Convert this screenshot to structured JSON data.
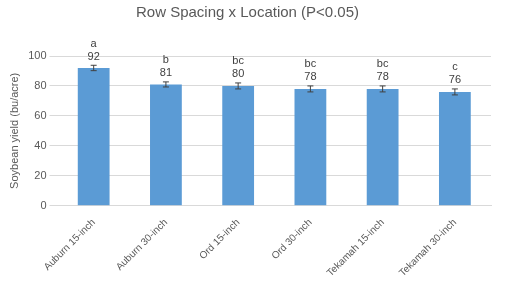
{
  "chart_data": {
    "type": "bar",
    "title": "Row Spacing x Location (P<0.05)",
    "y_label": "Soybean yield (bu/acre)",
    "categories": [
      "Auburn 15-inch",
      "Auburn 30-inch",
      "Ord 15-inch",
      "Ord 30-inch",
      "Tekamah 15-inch",
      "Tekamah 30-inch"
    ],
    "values": [
      92,
      81,
      80,
      78,
      78,
      76
    ],
    "errors": [
      1.8,
      1.7,
      2,
      2,
      2,
      2
    ],
    "annotations": [
      "a",
      "b",
      "bc",
      "bc",
      "bc",
      "c"
    ],
    "color": "#5b9bd5",
    "ylim": [
      0,
      100
    ],
    "yticks": [
      0,
      20,
      40,
      60,
      80,
      100
    ],
    "grid": true,
    "data_labels": true
  }
}
